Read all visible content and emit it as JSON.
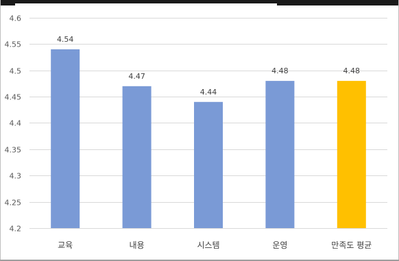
{
  "chart_data": {
    "type": "bar",
    "title": "",
    "xlabel": "",
    "ylabel": "",
    "categories": [
      "교육",
      "내용",
      "시스템",
      "운영",
      "만족도 평균"
    ],
    "values": [
      4.54,
      4.47,
      4.44,
      4.48,
      4.48
    ],
    "data_labels": [
      "4.54",
      "4.47",
      "4.44",
      "4.48",
      "4.48"
    ],
    "ylim": [
      4.2,
      4.6
    ],
    "y_ticks": [
      4.2,
      4.25,
      4.3,
      4.35,
      4.4,
      4.45,
      4.5,
      4.55,
      4.6
    ],
    "y_tick_labels": [
      "4.2",
      "4.25",
      "4.3",
      "4.35",
      "4.4",
      "4.45",
      "4.5",
      "4.55",
      "4.6"
    ],
    "grid": true,
    "legend": "none",
    "bar_colors": [
      "#7a9ad6",
      "#7a9ad6",
      "#7a9ad6",
      "#7a9ad6",
      "#ffc000"
    ],
    "grid_color": "#d9d9d9",
    "axis_color": "#d9d9d9"
  }
}
